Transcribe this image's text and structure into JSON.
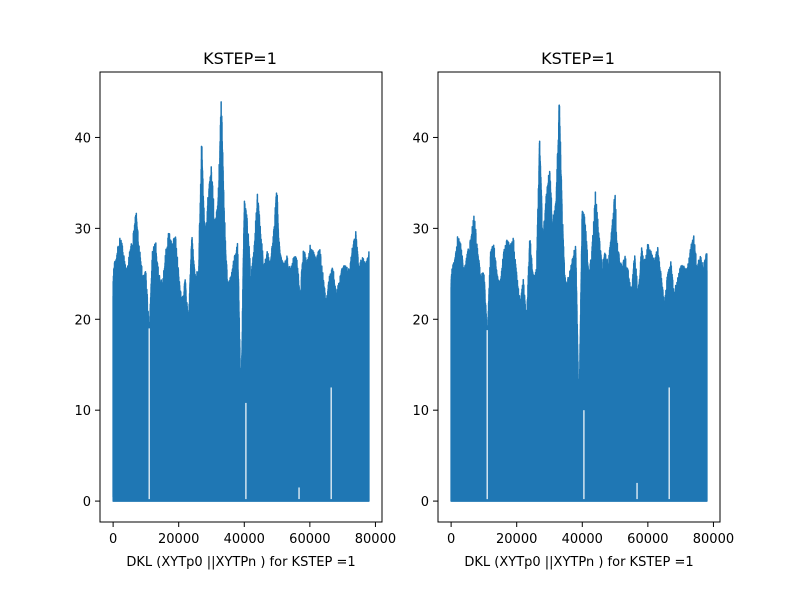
{
  "figure": {
    "background": "#ffffff",
    "line_color": "#1f77b4"
  },
  "chart_data": [
    {
      "type": "line",
      "title": "KSTEP=1",
      "xlabel": "DKL (XYTp0 ||XYTPn ) for KSTEP =1",
      "ylabel": "",
      "xlim": [
        -4000,
        82000
      ],
      "ylim": [
        -2.3,
        47.2
      ],
      "xticks": [
        0,
        20000,
        40000,
        60000,
        80000
      ],
      "yticks": [
        0,
        10,
        20,
        30,
        40
      ],
      "grid": false,
      "series": [
        {
          "color": "#1f77b4",
          "x_range": [
            0,
            78000
          ],
          "baseline": 0,
          "envelope_x": [
            0,
            500,
            1000,
            2000,
            3000,
            4000,
            5000,
            6000,
            7000,
            8000,
            9000,
            10000,
            11000,
            12000,
            13000,
            14000,
            15000,
            16000,
            17000,
            18000,
            19000,
            20000,
            21000,
            22000,
            23000,
            24000,
            25000,
            26000,
            27000,
            27500,
            28000,
            29000,
            30000,
            31000,
            32000,
            33000,
            33800,
            34500,
            35000,
            36000,
            37000,
            38000,
            39000,
            40000,
            41000,
            42000,
            43000,
            44000,
            45000,
            46000,
            47000,
            48000,
            49000,
            50000,
            50500,
            51000,
            52000,
            53000,
            54000,
            55000,
            56000,
            57000,
            58000,
            59000,
            60000,
            61000,
            62000,
            63000,
            64000,
            65000,
            66000,
            67000,
            68000,
            69000,
            70000,
            71000,
            72000,
            73000,
            74000,
            75000,
            76000,
            77000,
            78000
          ],
          "envelope_y": [
            25,
            26.5,
            27,
            29.2,
            28,
            25.5,
            27.5,
            29,
            32,
            28,
            25,
            25.3,
            19,
            27.8,
            28.5,
            25,
            24,
            27.5,
            29.7,
            28.2,
            29.6,
            25,
            22,
            24.5,
            20,
            29.5,
            25,
            25.5,
            40,
            34.5,
            29,
            34,
            37,
            31,
            33,
            44.8,
            33,
            27,
            24,
            25,
            27,
            28.6,
            10.8,
            33.5,
            31,
            25,
            28,
            34,
            30,
            26,
            27.5,
            26.5,
            30,
            35.3,
            29,
            27.5,
            26,
            27,
            25.5,
            26.8,
            27,
            23,
            28,
            26.5,
            28.2,
            27.5,
            26.8,
            28,
            25,
            22,
            25,
            26,
            23,
            24.5,
            26,
            26,
            25.5,
            28,
            29.8,
            26,
            27,
            26,
            27.5
          ],
          "dips": [
            {
              "x": 11000,
              "y": 19
            },
            {
              "x": 40500,
              "y": 10.8
            },
            {
              "x": 56700,
              "y": 1.5
            },
            {
              "x": 66500,
              "y": 12.5
            }
          ]
        }
      ]
    },
    {
      "type": "line",
      "title": "KSTEP=1",
      "xlabel": "DKL (XYTp0 ||XYTPn ) for KSTEP =1",
      "ylabel": "",
      "xlim": [
        -4000,
        82000
      ],
      "ylim": [
        -2.3,
        47.2
      ],
      "xticks": [
        0,
        20000,
        40000,
        60000,
        80000
      ],
      "yticks": [
        0,
        10,
        20,
        30,
        40
      ],
      "grid": false,
      "series": [
        {
          "color": "#1f77b4",
          "x_range": [
            0,
            78000
          ],
          "baseline": 0,
          "envelope_x": [
            0,
            500,
            1000,
            2000,
            3000,
            4000,
            5000,
            6000,
            7000,
            8000,
            9000,
            10000,
            11000,
            12000,
            13000,
            14000,
            15000,
            16000,
            17000,
            18000,
            19000,
            20000,
            21000,
            22000,
            23000,
            24000,
            25000,
            26000,
            27000,
            27500,
            28000,
            29000,
            30000,
            31000,
            32000,
            33000,
            33800,
            34500,
            35000,
            36000,
            37000,
            38000,
            39000,
            40000,
            41000,
            42000,
            43000,
            44000,
            45000,
            46000,
            47000,
            48000,
            49000,
            50000,
            50500,
            51000,
            52000,
            53000,
            54000,
            55000,
            56000,
            57000,
            58000,
            59000,
            60000,
            61000,
            62000,
            63000,
            64000,
            65000,
            66000,
            67000,
            68000,
            69000,
            70000,
            71000,
            72000,
            73000,
            74000,
            75000,
            76000,
            77000,
            78000
          ],
          "envelope_y": [
            25,
            26,
            26.5,
            29.2,
            28.3,
            25.5,
            27.5,
            29,
            31.8,
            28,
            25,
            25.2,
            18.8,
            27.5,
            28.5,
            25,
            24,
            27.5,
            28.8,
            28.2,
            29,
            25,
            22,
            24.5,
            20,
            29.5,
            25,
            25.5,
            40.3,
            34.5,
            29,
            34,
            36.8,
            31,
            33,
            44.7,
            33,
            26.5,
            24,
            25,
            27,
            28.3,
            10,
            33,
            30.5,
            25,
            28,
            34,
            30,
            26,
            27.5,
            26.5,
            30,
            34.6,
            29,
            27.5,
            26,
            27,
            25.5,
            23.2,
            27.5,
            23,
            28,
            26.5,
            28.5,
            27.5,
            26.5,
            28,
            25,
            22,
            25,
            26.5,
            23,
            24.5,
            26,
            26,
            25.5,
            28,
            29.2,
            26,
            27,
            26,
            27.5
          ],
          "dips": [
            {
              "x": 11000,
              "y": 18.8
            },
            {
              "x": 40500,
              "y": 10
            },
            {
              "x": 56700,
              "y": 2
            },
            {
              "x": 66500,
              "y": 12.5
            }
          ]
        }
      ]
    }
  ]
}
